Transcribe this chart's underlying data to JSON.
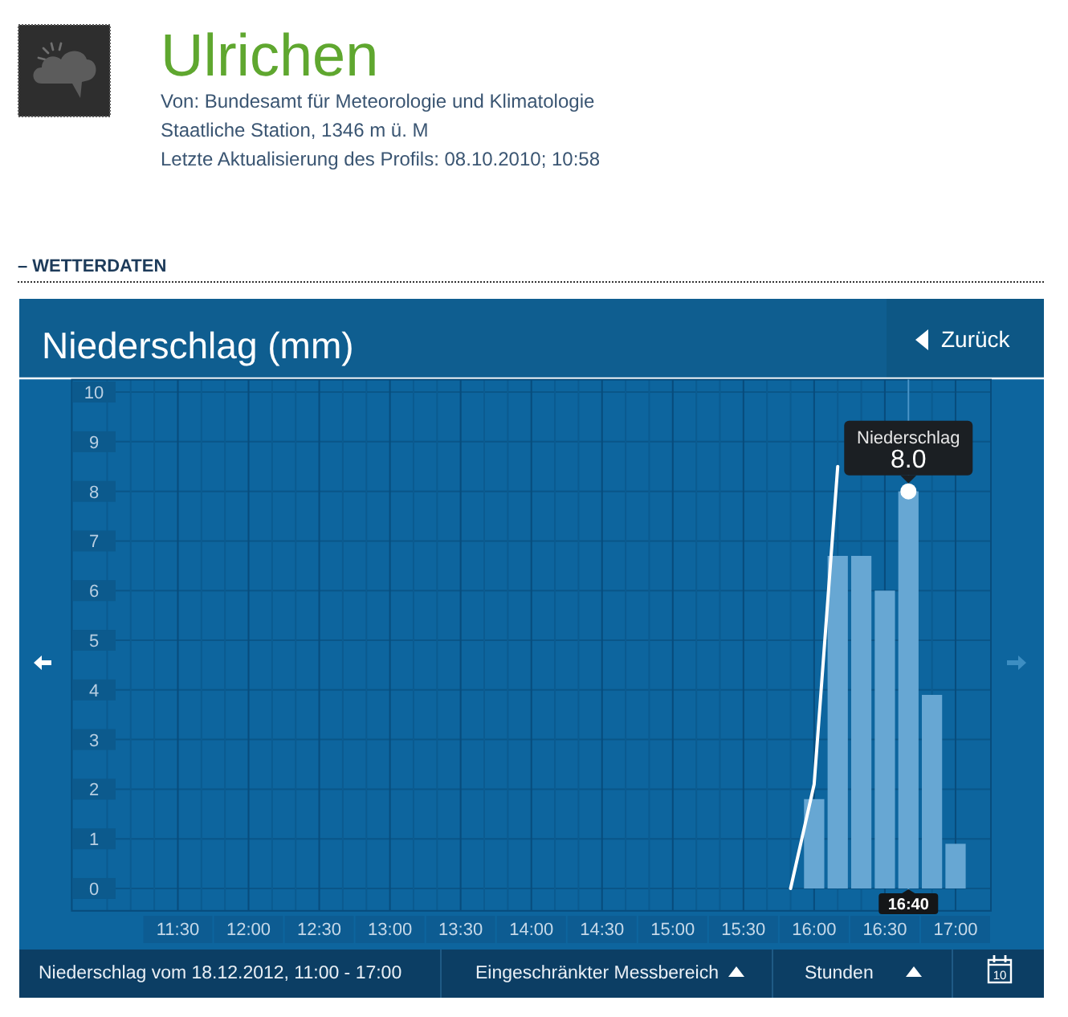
{
  "chart_data": {
    "type": "bar",
    "title": "Niederschlag (mm)",
    "annotations": [
      "Ulrichen",
      "Von: Bundesamt für Meteorologie und Klimatologie",
      "Staatliche Station, 1346 m ü. M",
      "Letzte Aktualisierung des Profils: 08.10.2010; 10:58",
      "– WETTERDATEN",
      "Zurück",
      "Niederschlag vom 18.12.2012, 11:00 - 17:00",
      "Eingeschränkter Messbereich",
      "Stunden",
      "10",
      {
        "text": "16:40",
        "x": "2012-12-18T16:40"
      }
    ],
    "series": [
      {
        "name": "Niederschlag",
        "color": "#67a7d3",
        "x": [
          "2012-12-18T16:00",
          "2012-12-18T16:10",
          "2012-12-18T16:20",
          "2012-12-18T16:30",
          "2012-12-18T16:40",
          "2012-12-18T16:50",
          "2012-12-18T17:00"
        ],
        "values": [
          1.8,
          6.7,
          6.7,
          6.0,
          8.0,
          3.9,
          0.9
        ],
        "value_labels": [
          null,
          null,
          null,
          null,
          "8.0",
          null,
          null
        ]
      },
      {
        "type": "line",
        "color": "#ffffff",
        "x": [
          "2012-12-18T15:50",
          "2012-12-18T16:00",
          "2012-12-18T16:10"
        ],
        "values": [
          0,
          2.1,
          8.5
        ]
      },
      {
        "type": "scatter",
        "color": "#ffffff",
        "marker": "circle",
        "x": [
          "2012-12-18T16:40"
        ],
        "values": [
          8.0
        ]
      }
    ],
    "xlim": [
      "2012-12-18T10:45",
      "2012-12-18T17:15"
    ],
    "ylim": [
      -0.45,
      10.25
    ],
    "xticks": [
      {
        "value": "2012-12-18T11:00",
        "label": null
      },
      {
        "value": "2012-12-18T11:10",
        "label": null
      },
      {
        "value": "2012-12-18T11:20",
        "label": null
      },
      {
        "value": "2012-12-18T11:30",
        "label": "11:30"
      },
      {
        "value": "2012-12-18T11:40",
        "label": null
      },
      {
        "value": "2012-12-18T11:50",
        "label": null
      },
      {
        "value": "2012-12-18T12:00",
        "label": "12:00"
      },
      {
        "value": "2012-12-18T12:10",
        "label": null
      },
      {
        "value": "2012-12-18T12:20",
        "label": null
      },
      {
        "value": "2012-12-18T12:30",
        "label": "12:30"
      },
      {
        "value": "2012-12-18T12:40",
        "label": null
      },
      {
        "value": "2012-12-18T12:50",
        "label": null
      },
      {
        "value": "2012-12-18T13:00",
        "label": "13:00"
      },
      {
        "value": "2012-12-18T13:10",
        "label": null
      },
      {
        "value": "2012-12-18T13:20",
        "label": null
      },
      {
        "value": "2012-12-18T13:30",
        "label": "13:30"
      },
      {
        "value": "2012-12-18T13:40",
        "label": null
      },
      {
        "value": "2012-12-18T13:50",
        "label": null
      },
      {
        "value": "2012-12-18T14:00",
        "label": "14:00"
      },
      {
        "value": "2012-12-18T14:10",
        "label": null
      },
      {
        "value": "2012-12-18T14:20",
        "label": null
      },
      {
        "value": "2012-12-18T14:30",
        "label": "14:30"
      },
      {
        "value": "2012-12-18T14:40",
        "label": null
      },
      {
        "value": "2012-12-18T14:50",
        "label": null
      },
      {
        "value": "2012-12-18T15:00",
        "label": "15:00"
      },
      {
        "value": "2012-12-18T15:10",
        "label": null
      },
      {
        "value": "2012-12-18T15:20",
        "label": null
      },
      {
        "value": "2012-12-18T15:30",
        "label": "15:30"
      },
      {
        "value": "2012-12-18T15:40",
        "label": null
      },
      {
        "value": "2012-12-18T15:50",
        "label": null
      },
      {
        "value": "2012-12-18T16:00",
        "label": "16:00"
      },
      {
        "value": "2012-12-18T16:10",
        "label": null
      },
      {
        "value": "2012-12-18T16:20",
        "label": null
      },
      {
        "value": "2012-12-18T16:30",
        "label": "16:30"
      },
      {
        "value": "2012-12-18T16:40",
        "label": null
      },
      {
        "value": "2012-12-18T16:50",
        "label": null
      },
      {
        "value": "2012-12-18T17:00",
        "label": "17:00"
      }
    ],
    "yticks": [
      0,
      1,
      2,
      3,
      4,
      5,
      6,
      7,
      8,
      9,
      10
    ],
    "grid": true,
    "ref_lines": [
      {
        "axis": "x",
        "value": "2012-12-18T16:40",
        "color": "#4a95c8"
      }
    ]
  }
}
